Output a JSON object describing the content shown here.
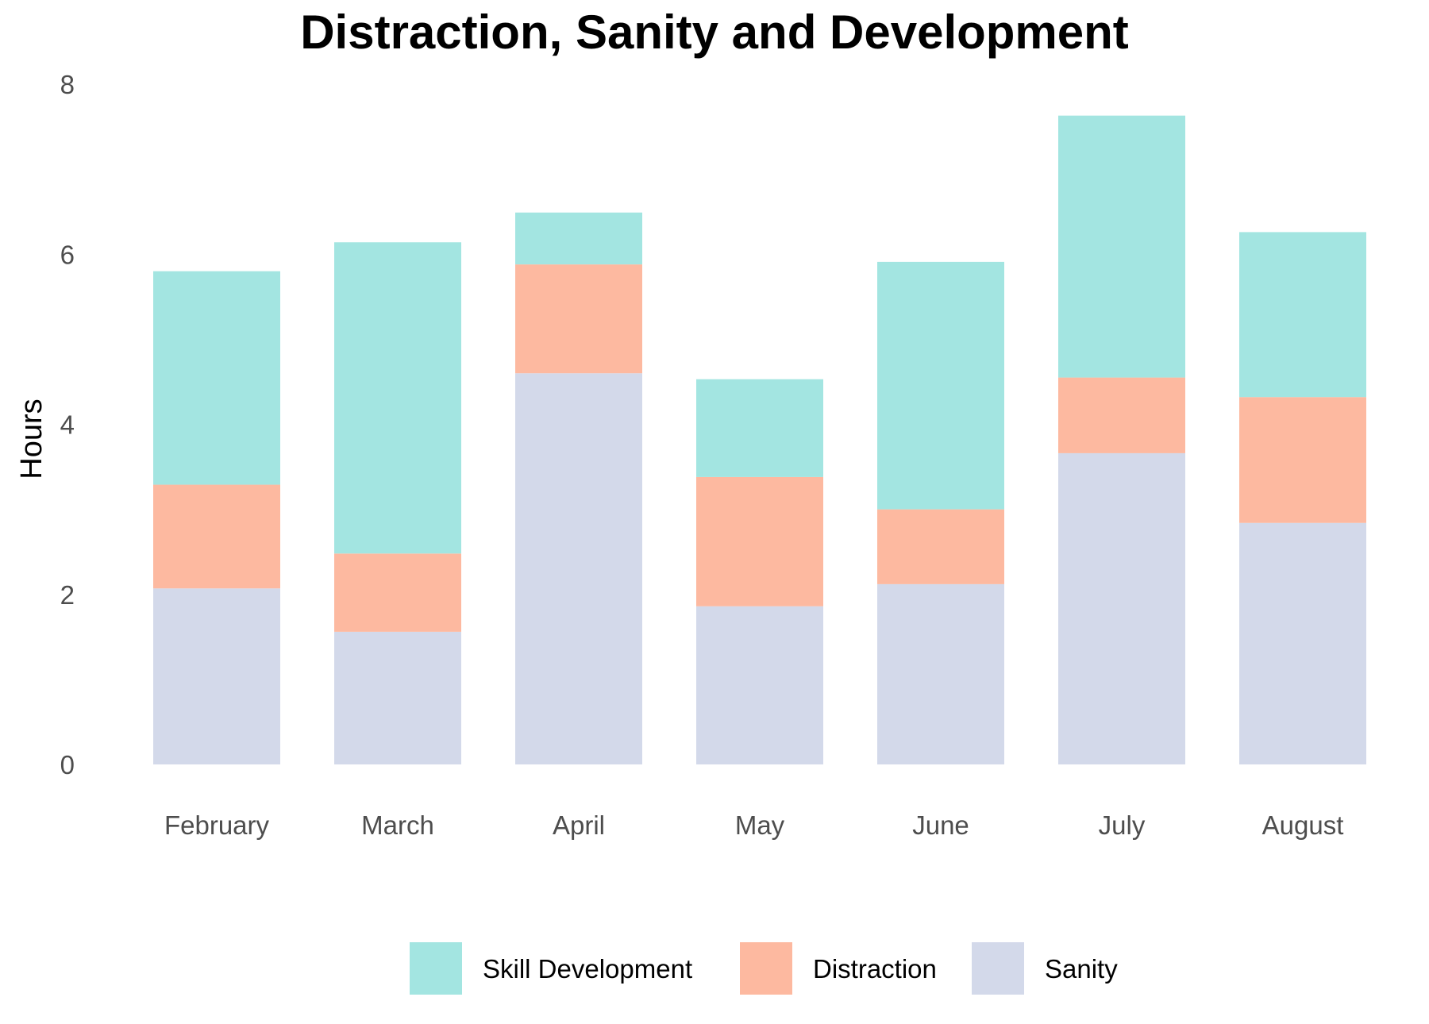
{
  "chart_data": {
    "type": "bar",
    "stacked": true,
    "title": "Distraction, Sanity and Development",
    "xlabel": "",
    "ylabel": "Hours",
    "ylim": [
      0,
      8
    ],
    "yticks": [
      0,
      2,
      4,
      6,
      8
    ],
    "grid": false,
    "legend_position": "bottom",
    "categories": [
      "February",
      "March",
      "April",
      "May",
      "June",
      "July",
      "August"
    ],
    "series": [
      {
        "name": "Sanity",
        "color": "#d3d9ea",
        "values": [
          2.07,
          1.56,
          4.6,
          1.86,
          2.12,
          3.66,
          2.84
        ]
      },
      {
        "name": "Distraction",
        "color": "#fdb9a0",
        "values": [
          1.22,
          0.92,
          1.28,
          1.52,
          0.88,
          0.89,
          1.48
        ]
      },
      {
        "name": "Skill Development",
        "color": "#a3e5e1",
        "values": [
          2.51,
          3.66,
          0.61,
          1.15,
          2.91,
          3.08,
          1.94
        ]
      }
    ],
    "legend_order": [
      "Skill Development",
      "Distraction",
      "Sanity"
    ]
  }
}
